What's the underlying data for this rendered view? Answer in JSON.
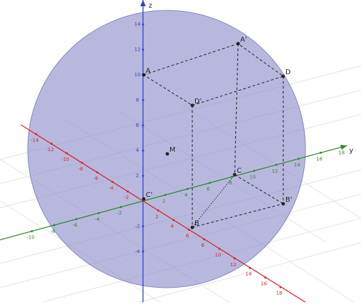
{
  "axes": {
    "x": {
      "ticks": [
        -14,
        -12,
        -10,
        -8,
        -6,
        -4,
        -2,
        2,
        4,
        6,
        8,
        10,
        12,
        14,
        16,
        18
      ]
    },
    "y": {
      "label": "y",
      "ticks": [
        -10,
        -8,
        -6,
        -4,
        -2,
        2,
        4,
        6,
        8,
        10,
        12,
        14,
        16,
        18
      ]
    },
    "z": {
      "label": "z",
      "ticks": [
        -4,
        -2,
        2,
        4,
        6,
        8,
        10,
        12,
        14
      ]
    }
  },
  "points": [
    {
      "label": "A"
    },
    {
      "label": "A'"
    },
    {
      "label": "D"
    },
    {
      "label": "D'"
    },
    {
      "label": "M"
    },
    {
      "label": "C"
    },
    {
      "label": "C'"
    },
    {
      "label": "B"
    },
    {
      "label": "B'"
    }
  ]
}
